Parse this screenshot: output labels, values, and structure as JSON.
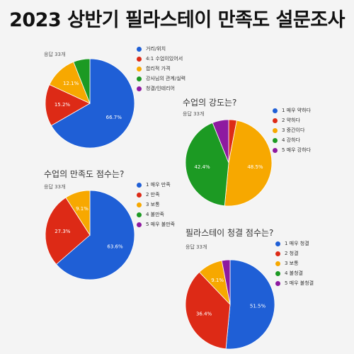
{
  "page_title": "2023 상반기 필라스테이 만족도 설문조사",
  "chart_data": [
    {
      "type": "pie",
      "title": "",
      "responses": "응답 33개",
      "legend": [
        "거리/위치",
        "4:1 수업이있어서",
        "합리적 가격",
        "강사님의 관계/실력",
        "청결/인테리어"
      ],
      "values": [
        66.7,
        15.2,
        12.1,
        6.0,
        0
      ],
      "labels": [
        "66.7%",
        "15.2%",
        "12.1%",
        "",
        ""
      ],
      "colors": [
        "#1f5fd6",
        "#dd2a16",
        "#f7a800",
        "#1c9a23",
        "#8e1aa0"
      ]
    },
    {
      "type": "pie",
      "title": "수업의 강도는?",
      "responses": "응답 33개",
      "legend": [
        "1 매우 약하다",
        "2 약하다",
        "3 중간이다",
        "4 강하다",
        "5 매우 강하다"
      ],
      "values": [
        0,
        3.0,
        48.5,
        42.4,
        6.1
      ],
      "labels": [
        "",
        "",
        "48.5%",
        "42.4%",
        ""
      ],
      "colors": [
        "#1f5fd6",
        "#dd2a16",
        "#f7a800",
        "#1c9a23",
        "#8e1aa0"
      ]
    },
    {
      "type": "pie",
      "title": "수업의 만족도 점수는?",
      "responses": "응답 33개",
      "legend": [
        "1 매우 만족",
        "2 만족",
        "3 보통",
        "4 불만족",
        "5 매우 불만족"
      ],
      "values": [
        63.6,
        27.3,
        9.1,
        0,
        0
      ],
      "labels": [
        "63.6%",
        "27.3%",
        "9.1%",
        "",
        ""
      ],
      "colors": [
        "#1f5fd6",
        "#dd2a16",
        "#f7a800",
        "#1c9a23",
        "#8e1aa0"
      ]
    },
    {
      "type": "pie",
      "title": "필라스테이 청결 점수는?",
      "responses": "응답 33개",
      "legend": [
        "1 매우 청결",
        "2 청결",
        "3 보통",
        "4 불청결",
        "5 매우 불청결"
      ],
      "values": [
        51.5,
        36.4,
        9.1,
        0,
        3.0
      ],
      "labels": [
        "51.5%",
        "36.4%",
        "9.1%",
        "",
        ""
      ],
      "colors": [
        "#1f5fd6",
        "#dd2a16",
        "#f7a800",
        "#1c9a23",
        "#8e1aa0"
      ]
    }
  ]
}
